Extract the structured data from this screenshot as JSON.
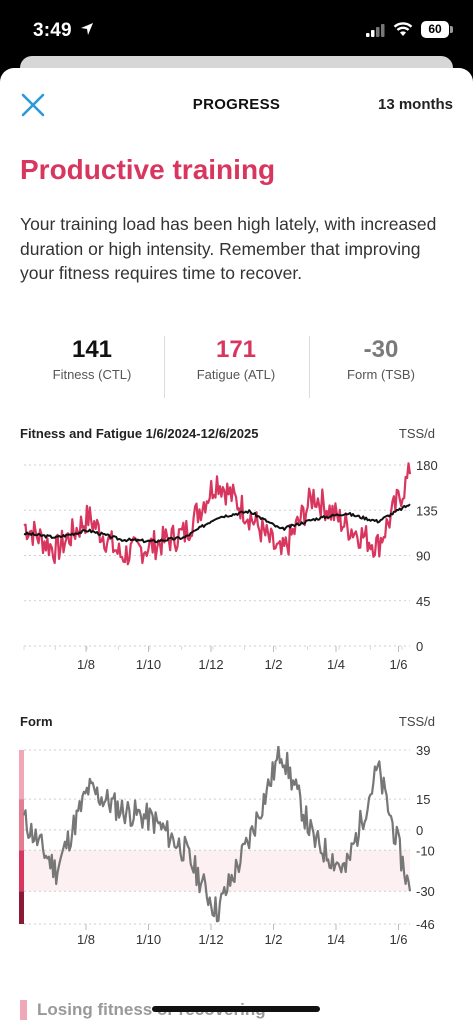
{
  "status_bar": {
    "time": "3:49",
    "battery": "60"
  },
  "nav": {
    "title": "PROGRESS",
    "range": "13 months"
  },
  "headline": "Productive training",
  "description": "Your training load has been high lately, with increased duration or high intensity. Remember that improving your fitness requires time to recover.",
  "stats": [
    {
      "value": "141",
      "label": "Fitness (CTL)",
      "color": "#111111"
    },
    {
      "value": "171",
      "label": "Fatigue (ATL)",
      "color": "#d8365e"
    },
    {
      "value": "-30",
      "label": "Form (TSB)",
      "color": "#7a7a7a"
    }
  ],
  "fitness_chart": {
    "title": "Fitness and Fatigue 1/6/2024-12/6/2025",
    "unit": "TSS/d",
    "y_ticks": [
      "180",
      "135",
      "90",
      "45",
      "0"
    ],
    "x_ticks": [
      "1/8",
      "1/10",
      "1/12",
      "1/2",
      "1/4",
      "1/6"
    ]
  },
  "form_chart": {
    "title": "Form",
    "unit": "TSS/d",
    "y_ticks": [
      "39",
      "15",
      "0",
      "-10",
      "-30",
      "-46"
    ],
    "x_ticks": [
      "1/8",
      "1/10",
      "1/12",
      "1/2",
      "1/4",
      "1/6"
    ]
  },
  "chart_data": [
    {
      "type": "line",
      "title": "Fitness and Fatigue 1/6/2024-12/6/2025",
      "ylabel": "TSS/d",
      "ylim": [
        0,
        180
      ],
      "x_ticks": [
        "1/8",
        "1/10",
        "1/12",
        "1/2",
        "1/4",
        "1/6"
      ],
      "x": [
        "Jun 2024",
        "Jul 2024",
        "Aug 2024",
        "Sep 2024",
        "Oct 2024",
        "Nov 2024",
        "Dec 2024",
        "Jan 2025",
        "Feb 2025",
        "Mar 2025",
        "Apr 2025",
        "May 2025",
        "Jun 2025"
      ],
      "series": [
        {
          "name": "Fitness (CTL)",
          "color": "#111111",
          "values": [
            112,
            108,
            115,
            106,
            104,
            108,
            128,
            134,
            116,
            126,
            132,
            124,
            141
          ]
        },
        {
          "name": "Fatigue (ATL)",
          "color": "#d8365e",
          "values": [
            120,
            95,
            128,
            90,
            100,
            112,
            165,
            130,
            90,
            150,
            120,
            100,
            171
          ]
        }
      ]
    },
    {
      "type": "line",
      "title": "Form",
      "ylabel": "TSS/d",
      "ylim": [
        -46,
        39
      ],
      "x_ticks": [
        "1/8",
        "1/10",
        "1/12",
        "1/2",
        "1/4",
        "1/6"
      ],
      "x": [
        "Jun 2024",
        "Jul 2024",
        "Aug 2024",
        "Sep 2024",
        "Oct 2024",
        "Nov 2024",
        "Dec 2024",
        "Jan 2025",
        "Feb 2025",
        "Mar 2025",
        "Apr 2025",
        "May 2025",
        "Jun 2025"
      ],
      "series": [
        {
          "name": "Form (TSB)",
          "color": "#777777",
          "values": [
            5,
            -20,
            20,
            10,
            5,
            -10,
            -40,
            -5,
            39,
            -5,
            -20,
            30,
            -30
          ]
        }
      ]
    }
  ],
  "bottom_row": {
    "label": "Losing fitness or recovering"
  },
  "colors": {
    "accent": "#d8365e",
    "fitness": "#111111",
    "form": "#777777"
  }
}
